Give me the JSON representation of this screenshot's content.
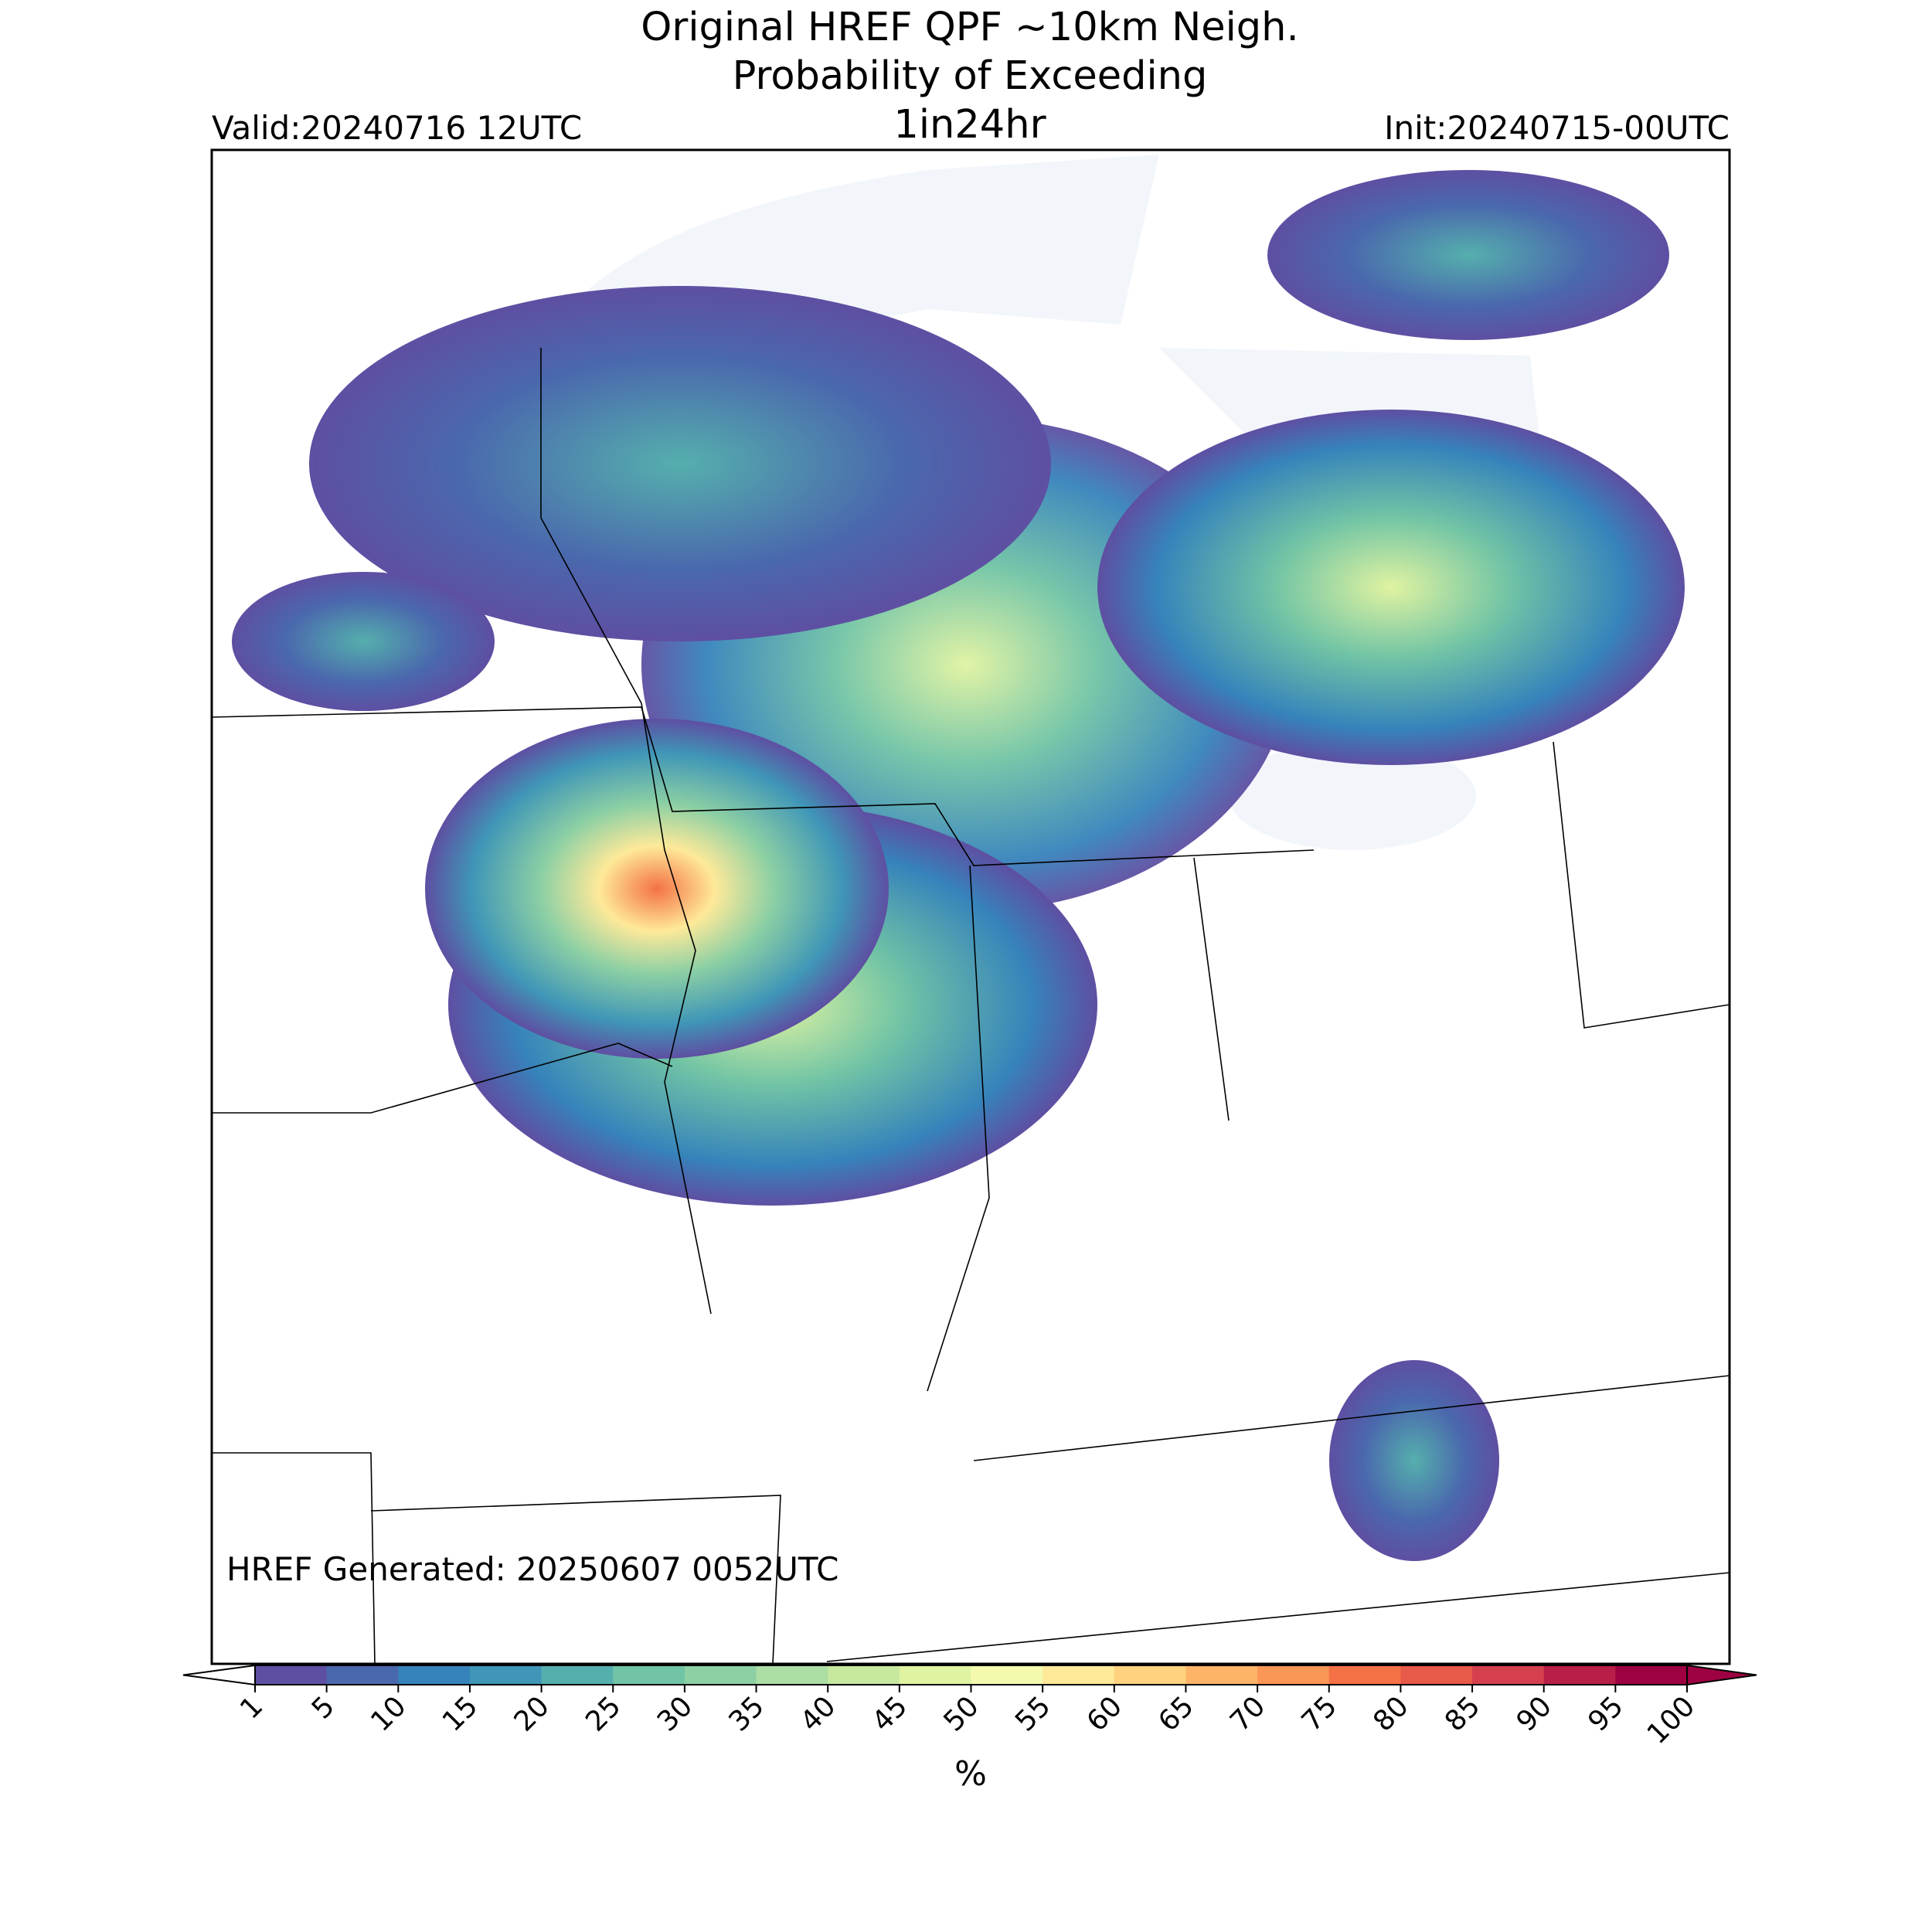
{
  "title": [
    "Original HREF QPF ~10km Neigh.",
    "Probability of Exceeding"
  ],
  "subtitle": "1in24hr",
  "valid": "Valid:20240716 12UTC",
  "init": "Init:20240715-00UTC",
  "generated": "HREF Generated: 20250607 0052UTC",
  "colorbar": {
    "label": "%",
    "ticks": [
      1,
      5,
      10,
      15,
      20,
      25,
      30,
      35,
      40,
      45,
      50,
      55,
      60,
      65,
      70,
      75,
      80,
      85,
      90,
      95,
      100
    ],
    "colors": [
      "#5e4fa2",
      "#4a68ad",
      "#3683bb",
      "#3f96b7",
      "#55afad",
      "#71c4a5",
      "#8dd0a4",
      "#abdda4",
      "#c6e89f",
      "#e0f3a1",
      "#f4faad",
      "#fee999",
      "#fed27f",
      "#fdb466",
      "#fa9656",
      "#f47246",
      "#e75948",
      "#d6404e",
      "#b91e48",
      "#9e0142"
    ],
    "under_color": "#ffffff",
    "over_color": "#9e0142"
  }
}
